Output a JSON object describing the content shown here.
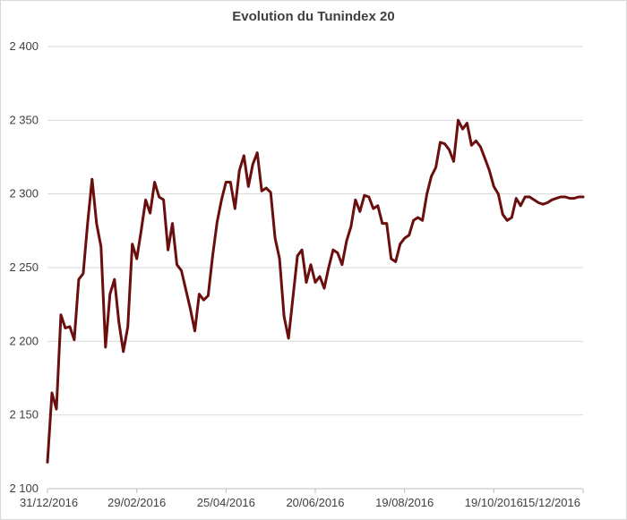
{
  "chart_data": {
    "type": "line",
    "title": "Evolution du Tunindex 20",
    "xlabel": "",
    "ylabel": "",
    "ylim": [
      2100,
      2400
    ],
    "yticks": [
      2100,
      2150,
      2200,
      2250,
      2300,
      2350,
      2400
    ],
    "ytick_labels": [
      "2 100",
      "2 150",
      "2 200",
      "2 250",
      "2 300",
      "2 350",
      "2 400"
    ],
    "xticks": [
      "31/12/2016",
      "29/02/2016",
      "25/04/2016",
      "20/06/2016",
      "19/08/2016",
      "19/10/2016",
      "15/12/2016"
    ],
    "grid": true,
    "legend": "none",
    "line_color": "#6b0e0e",
    "x_domain": [
      0,
      120
    ],
    "x_tick_positions": [
      0,
      20,
      40,
      60,
      80,
      100,
      120
    ],
    "x": [
      0,
      1,
      2,
      3,
      4,
      5,
      6,
      7,
      8,
      9,
      10,
      11,
      12,
      13,
      14,
      15,
      16,
      17,
      18,
      19,
      20,
      21,
      22,
      23,
      24,
      25,
      26,
      27,
      28,
      29,
      30,
      31,
      32,
      33,
      34,
      35,
      36,
      37,
      38,
      39,
      40,
      41,
      42,
      43,
      44,
      45,
      46,
      47,
      48,
      49,
      50,
      51,
      52,
      53,
      54,
      55,
      56,
      57,
      58,
      59,
      60,
      61,
      62,
      63,
      64,
      65,
      66,
      67,
      68,
      69,
      70,
      71,
      72,
      73,
      74,
      75,
      76,
      77,
      78,
      79,
      80,
      81,
      82,
      83,
      84,
      85,
      86,
      87,
      88,
      89,
      90,
      91,
      92,
      93,
      94,
      95,
      96,
      97,
      98,
      99,
      100,
      101,
      102,
      103,
      104,
      105,
      106,
      107,
      108,
      109,
      110,
      111,
      112,
      113,
      114,
      115,
      116,
      117,
      118,
      119,
      120
    ],
    "values": [
      2118,
      2165,
      2154,
      2218,
      2209,
      2210,
      2201,
      2242,
      2246,
      2280,
      2310,
      2280,
      2264,
      2196,
      2232,
      2242,
      2213,
      2193,
      2210,
      2266,
      2256,
      2275,
      2296,
      2287,
      2308,
      2298,
      2296,
      2262,
      2280,
      2252,
      2248,
      2235,
      2222,
      2207,
      2232,
      2228,
      2231,
      2258,
      2281,
      2296,
      2308,
      2308,
      2290,
      2316,
      2326,
      2305,
      2320,
      2328,
      2302,
      2304,
      2301,
      2270,
      2256,
      2217,
      2202,
      2230,
      2258,
      2262,
      2240,
      2252,
      2240,
      2244,
      2236,
      2250,
      2262,
      2260,
      2252,
      2268,
      2278,
      2296,
      2288,
      2299,
      2298,
      2290,
      2292,
      2280,
      2280,
      2256,
      2254,
      2266,
      2270,
      2272,
      2282,
      2284,
      2282,
      2300,
      2312,
      2318,
      2335,
      2334,
      2330,
      2322,
      2350,
      2344,
      2348,
      2333,
      2336,
      2332,
      2324,
      2316,
      2305,
      2300,
      2286,
      2282,
      2284,
      2297,
      2292,
      2298,
      2298,
      2296,
      2294,
      2293,
      2294,
      2296,
      2297,
      2298,
      2298,
      2297,
      2297,
      2298,
      2298
    ]
  }
}
